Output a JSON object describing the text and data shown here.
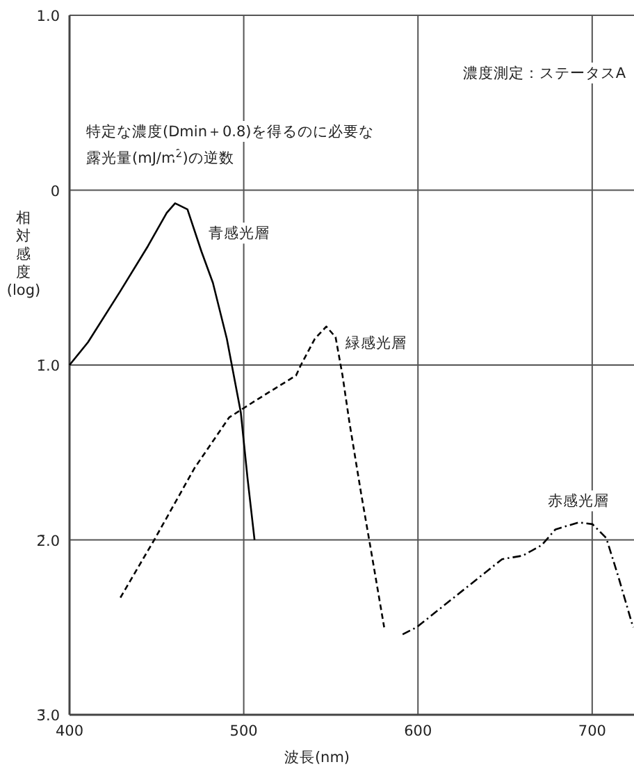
{
  "chart_data": {
    "type": "line",
    "xlabel": "波長(nm)",
    "ylabel": "相対感度(log)",
    "annotations": [
      "特定な濃度(Dmin＋0.8)を得るのに必要な露光量(mJ/m$^{2}$)の逆数",
      "濃度測定：ステータスA"
    ],
    "xlim": [
      400,
      724
    ],
    "xticks": [
      400,
      500,
      600,
      700
    ],
    "ylim": [
      -3,
      1
    ],
    "yticks": [
      {
        "value": 1,
        "label": "1.0"
      },
      0,
      {
        "value": -1,
        "label": "1̄.0"
      },
      {
        "value": -2,
        "label": "2̄.0"
      },
      {
        "value": -3,
        "label": "3̄.0"
      }
    ],
    "grid": true,
    "legend": false,
    "marker": "none",
    "series": [
      {
        "name": "青感光層",
        "color": "#000000",
        "line_style": "solid",
        "x": [
          400,
          410.6,
          429,
          445,
          455.8,
          460.6,
          467.7,
          475.7,
          482.3,
          490.3,
          498.3,
          502.2,
          506.2
        ],
        "values": [
          -1.0,
          -0.87,
          -0.58,
          -0.32,
          -0.13,
          -0.075,
          -0.11,
          -0.35,
          -0.53,
          -0.85,
          -1.27,
          -1.65,
          -2.0
        ]
      },
      {
        "name": "緑感光層",
        "color": "#000000",
        "line_style": "dashed",
        "x": [
          429.2,
          449.2,
          471.7,
          491.6,
          508.9,
          530,
          532.8,
          540.8,
          547.4,
          552.7,
          556.7,
          560.7,
          567.3,
          572.7,
          580.6
        ],
        "values": [
          -2.33,
          -1.99,
          -1.59,
          -1.3,
          -1.19,
          -1.06,
          -1.0,
          -0.85,
          -0.78,
          -0.84,
          -1.06,
          -1.33,
          -1.73,
          -2.04,
          -2.5
        ]
      },
      {
        "name": "赤感光層",
        "color": "#000000",
        "line_style": "dashdot",
        "x": [
          591.2,
          599.2,
          623.1,
          648.3,
          660.2,
          671,
          678.9,
          692.2,
          700.2,
          708.1,
          714.7,
          723.5
        ],
        "values": [
          -2.54,
          -2.5,
          -2.31,
          -2.11,
          -2.09,
          -2.03,
          -1.94,
          -1.9,
          -1.91,
          -1.99,
          -2.2,
          -2.5
        ]
      }
    ]
  }
}
